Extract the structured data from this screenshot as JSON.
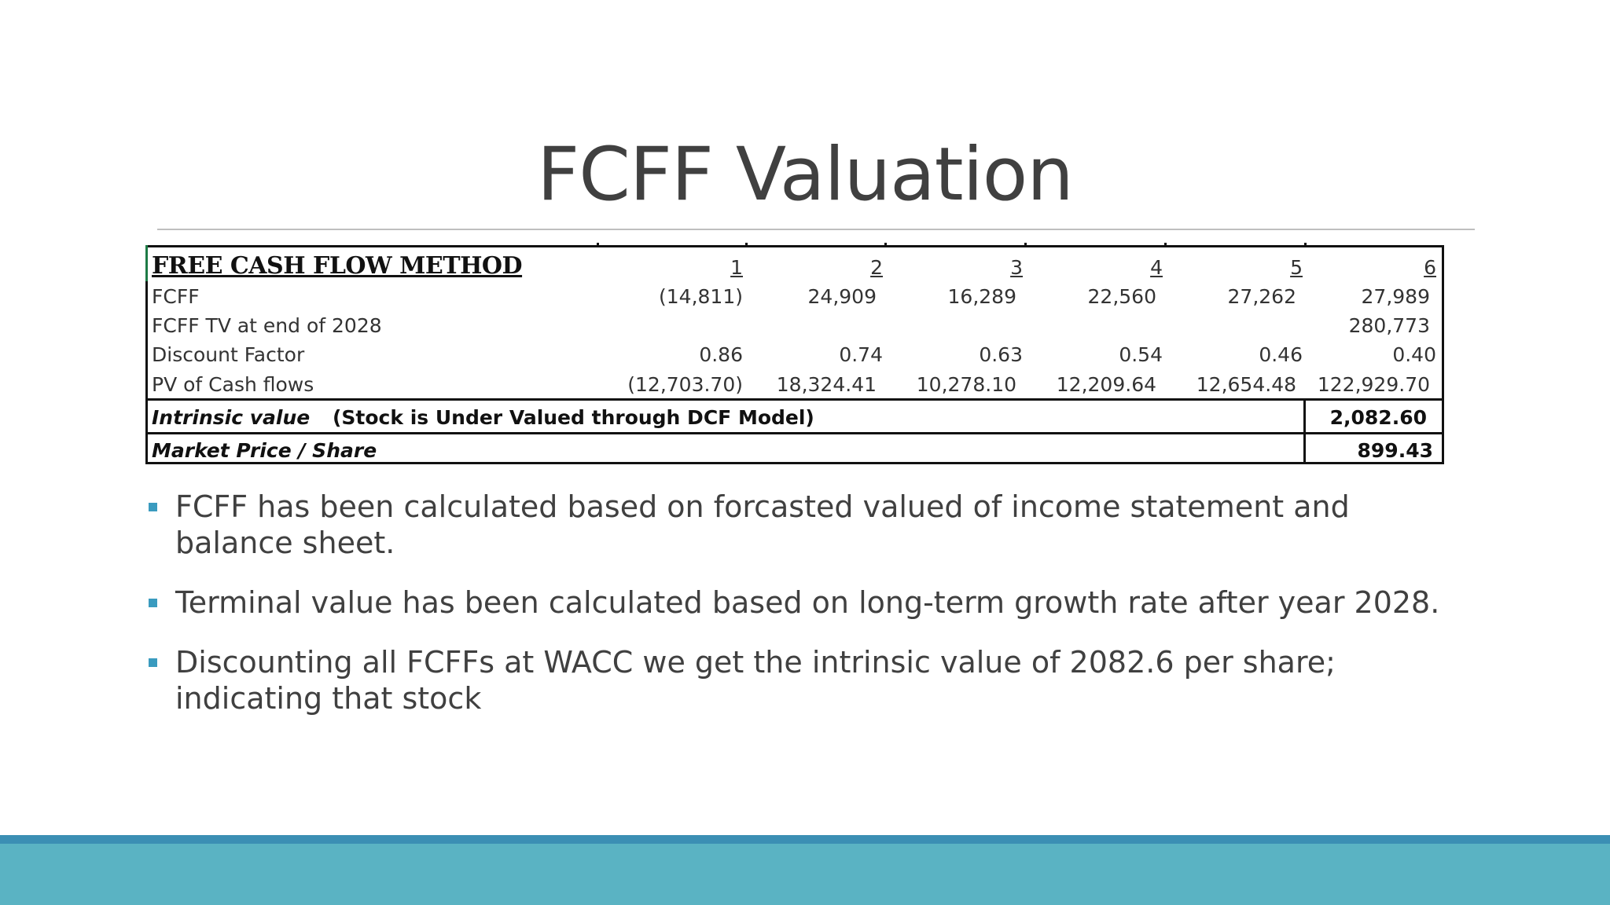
{
  "slide": {
    "title": "FCFF Valuation"
  },
  "table": {
    "header": {
      "title": "FREE CASH FLOW METHOD",
      "years": [
        "1",
        "2",
        "3",
        "4",
        "5",
        "6"
      ]
    },
    "rows": [
      {
        "label": "FCFF",
        "values": [
          "(14,811)",
          "24,909",
          "16,289",
          "22,560",
          "27,262",
          "27,989"
        ]
      },
      {
        "label": "FCFF TV at end of 2028",
        "values": [
          "",
          "",
          "",
          "",
          "",
          "280,773"
        ]
      },
      {
        "label": "Discount Factor",
        "values": [
          "0.86",
          "0.74",
          "0.63",
          "0.54",
          "0.46",
          "0.40"
        ]
      },
      {
        "label": "PV of Cash flows",
        "values": [
          "(12,703.70)",
          "18,324.41",
          "10,278.10",
          "12,209.64",
          "12,654.48",
          "122,929.70"
        ]
      }
    ],
    "intrinsic": {
      "label": "Intrinsic value",
      "note": "(Stock is Under Valued through DCF Model)",
      "value": "2,082.60"
    },
    "market": {
      "label": "Market Price / Share",
      "value": "899.43"
    }
  },
  "bullets": [
    "FCFF has been calculated based on forcasted valued of income statement and balance sheet.",
    "Terminal value has been calculated based on long-term growth rate after year 2028.",
    "Discounting all FCFFs at WACC we get the intrinsic value of 2082.6 per share; indicating that stock"
  ],
  "colors": {
    "accent": "#3a9bbf",
    "footer": "#5ab3c3",
    "footer_dark": "#3b8fb4",
    "title": "#404040"
  }
}
